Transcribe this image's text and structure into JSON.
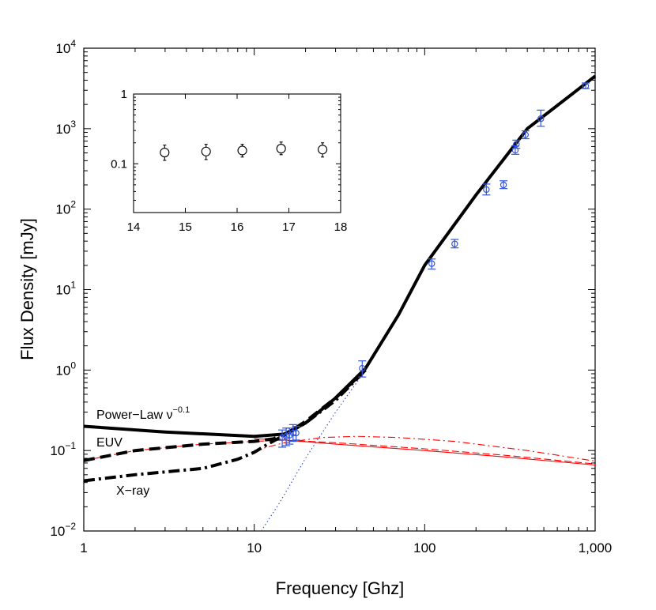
{
  "chart_data": [
    {
      "type": "line",
      "xscale": "log",
      "yscale": "log",
      "xlabel": "Frequency [Ghz]",
      "ylabel": "Flux Density [mJy]",
      "xlim": [
        1,
        1000
      ],
      "ylim": [
        0.01,
        10000
      ],
      "xticks": [
        1,
        10,
        100,
        1000
      ],
      "xtick_labels": [
        "1",
        "10",
        "100",
        "1,000"
      ],
      "yticks": [
        0.01,
        0.1,
        1,
        10,
        100,
        1000,
        10000
      ],
      "ytick_labels": [
        {
          "base": "10",
          "exp": "−2"
        },
        {
          "base": "10",
          "exp": "−1"
        },
        {
          "base": "10",
          "exp": "0"
        },
        {
          "base": "10",
          "exp": "1"
        },
        {
          "base": "10",
          "exp": "2"
        },
        {
          "base": "10",
          "exp": "3"
        },
        {
          "base": "10",
          "exp": "4"
        }
      ],
      "annotations": [
        {
          "text": "Power−Law ν",
          "sup": "−0.1",
          "role": "power-law-label"
        },
        {
          "text": "EUV",
          "sup": "",
          "role": "euv-label"
        },
        {
          "text": "X−ray",
          "sup": "",
          "role": "xray-label"
        }
      ],
      "colors": {
        "model": "#000000",
        "component": "#ff0000",
        "data": "#3355dd",
        "steep": "#3344cc"
      },
      "series": [
        {
          "name": "Power-Law total",
          "style": "solid",
          "color": "#000000",
          "x": [
            1,
            3,
            10,
            15,
            20,
            30,
            45,
            70,
            100,
            200,
            400,
            700,
            1000
          ],
          "y": [
            0.2,
            0.17,
            0.15,
            0.16,
            0.22,
            0.45,
            1.05,
            4.8,
            20,
            150,
            1000,
            2500,
            4500
          ]
        },
        {
          "name": "EUV total",
          "style": "dashed",
          "color": "#000000",
          "x": [
            1,
            2,
            5,
            10,
            13,
            16,
            20,
            30,
            45
          ],
          "y": [
            0.075,
            0.1,
            0.12,
            0.13,
            0.14,
            0.17,
            0.23,
            0.45,
            1.0
          ]
        },
        {
          "name": "X-ray total",
          "style": "dashdot",
          "color": "#000000",
          "x": [
            1,
            2,
            5,
            8,
            10,
            12,
            15,
            20,
            30,
            45
          ],
          "y": [
            0.042,
            0.05,
            0.06,
            0.078,
            0.095,
            0.12,
            0.155,
            0.22,
            0.42,
            1.0
          ]
        },
        {
          "name": "Power-Law component",
          "style": "solid",
          "color": "#ff0000",
          "x": [
            10,
            15,
            30,
            100,
            300,
            1000
          ],
          "y": [
            0.14,
            0.135,
            0.12,
            0.1,
            0.083,
            0.066
          ]
        },
        {
          "name": "EUV component",
          "style": "dashed",
          "color": "#ff0000",
          "x": [
            1,
            2,
            5,
            10,
            15,
            30,
            100,
            300,
            1000
          ],
          "y": [
            0.075,
            0.1,
            0.12,
            0.13,
            0.135,
            0.125,
            0.105,
            0.087,
            0.068
          ]
        },
        {
          "name": "X-ray component",
          "style": "dashdot",
          "color": "#ff0000",
          "x": [
            10,
            15,
            25,
            40,
            70,
            150,
            400,
            1000
          ],
          "y": [
            0.1,
            0.125,
            0.145,
            0.15,
            0.145,
            0.13,
            0.1,
            0.074
          ]
        },
        {
          "name": "Steep spectrum",
          "style": "dotted",
          "color": "#3344cc",
          "x": [
            11,
            14,
            20,
            30,
            45
          ],
          "y": [
            0.01,
            0.022,
            0.08,
            0.3,
            1.0
          ]
        }
      ],
      "points": {
        "name": "Observed flux",
        "color": "#3355dd",
        "x": [
          14.6,
          15.4,
          16.1,
          16.9,
          17.6,
          43,
          110,
          150,
          230,
          290,
          340,
          345,
          390,
          480,
          880
        ],
        "y": [
          0.145,
          0.15,
          0.155,
          0.165,
          0.165,
          1.05,
          21,
          37,
          175,
          200,
          540,
          640,
          840,
          1330,
          3400
        ],
        "yerr_lo": [
          0.11,
          0.115,
          0.12,
          0.13,
          0.135,
          0.82,
          18,
          33,
          150,
          180,
          480,
          570,
          750,
          1070,
          3150
        ],
        "yerr_hi": [
          0.18,
          0.19,
          0.19,
          0.21,
          0.2,
          1.3,
          24,
          42,
          205,
          225,
          610,
          720,
          940,
          1700,
          3700
        ]
      }
    },
    {
      "type": "scatter",
      "role": "inset",
      "xscale": "linear",
      "yscale": "log",
      "xlim": [
        14,
        18
      ],
      "ylim": [
        0.02,
        1
      ],
      "xticks": [
        14,
        15,
        16,
        17,
        18
      ],
      "xtick_labels": [
        "14",
        "15",
        "16",
        "17",
        "18"
      ],
      "yticks": [
        0.1,
        1
      ],
      "ytick_labels": [
        "0.1",
        "1"
      ],
      "points": {
        "color": "#000000",
        "x": [
          14.6,
          15.4,
          16.1,
          16.85,
          17.65
        ],
        "y": [
          0.145,
          0.15,
          0.155,
          0.165,
          0.16
        ],
        "yerr_lo": [
          0.112,
          0.115,
          0.125,
          0.135,
          0.125
        ],
        "yerr_hi": [
          0.185,
          0.19,
          0.19,
          0.205,
          0.2
        ]
      }
    }
  ]
}
